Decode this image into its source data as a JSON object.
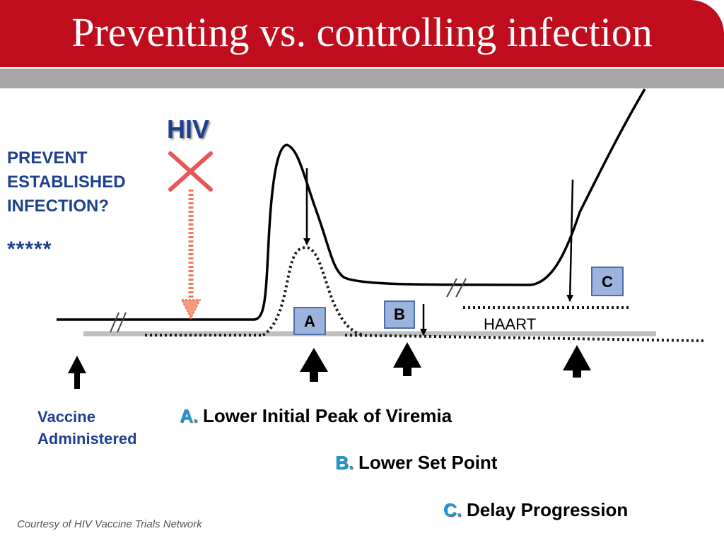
{
  "slide": {
    "title": "Preventing vs. controlling infection",
    "prevent_lines": [
      "PREVENT",
      "ESTABLISHED",
      "INFECTION?"
    ],
    "stars": "*****",
    "hiv_label": "HIV",
    "boxes": {
      "a": "A",
      "b": "B",
      "c": "C"
    },
    "haart_label": "HAART",
    "vaccine_lines": [
      "Vaccine",
      "Administered"
    ],
    "legend": [
      {
        "letter": "A.",
        "text": "Lower Initial Peak of Viremia"
      },
      {
        "letter": "B.",
        "text": "Lower Set Point"
      },
      {
        "letter": "C.",
        "text": "Delay Progression"
      }
    ],
    "courtesy": "Courtesy of HIV Vaccine Trials Network"
  },
  "colors": {
    "title_bar": "#c00d1e",
    "gray_bar": "#a6a6a6",
    "blue_text": "#1f3f8f",
    "legend_letter": "#1a9ad6",
    "box_fill": "#9cb4db",
    "red_mark": "#e8565a",
    "orange_arrow": "#f07a5a"
  },
  "icons": [
    "x-mark-icon",
    "up-arrow-icon",
    "down-arrow-icon",
    "break-mark-icon"
  ]
}
